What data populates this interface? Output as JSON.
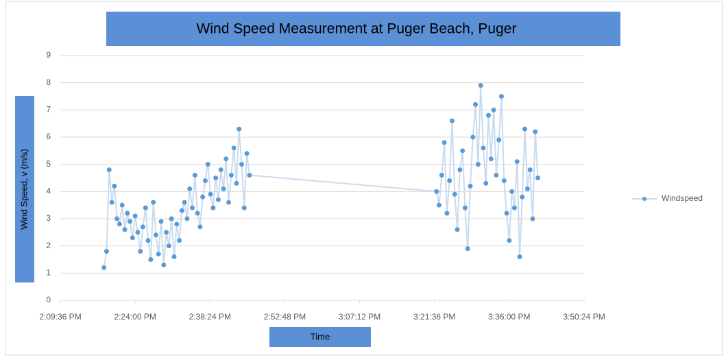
{
  "chart_data": {
    "type": "scatter",
    "title": "Wind  Speed Measurement at Puger Beach, Puger",
    "x_label": "Time",
    "y_label": "Wind Speed, v (m/s)",
    "xlim": [
      50976,
      57024
    ],
    "xticks": [
      {
        "value": 50976,
        "label": "2:09:36 PM"
      },
      {
        "value": 51840,
        "label": "2:24:00 PM"
      },
      {
        "value": 52704,
        "label": "2:38:24 PM"
      },
      {
        "value": 53568,
        "label": "2:52:48 PM"
      },
      {
        "value": 54432,
        "label": "3:07:12 PM"
      },
      {
        "value": 55296,
        "label": "3:21:36 PM"
      },
      {
        "value": 56160,
        "label": "3:36:00 PM"
      },
      {
        "value": 57024,
        "label": "3:50:24 PM"
      }
    ],
    "ylim": [
      0,
      9
    ],
    "yticks": [
      0,
      1,
      2,
      3,
      4,
      5,
      6,
      7,
      8,
      9
    ],
    "grid": true,
    "legend": "right",
    "series": [
      {
        "name": "Windspeed",
        "color": "#5b9bd5",
        "x": [
          51480,
          51510,
          51540,
          51570,
          51600,
          51630,
          51660,
          51690,
          51720,
          51750,
          51780,
          51810,
          51840,
          51870,
          51900,
          51930,
          51960,
          51990,
          52020,
          52050,
          52080,
          52110,
          52140,
          52170,
          52200,
          52230,
          52260,
          52290,
          52320,
          52350,
          52380,
          52410,
          52440,
          52470,
          52500,
          52530,
          52560,
          52590,
          52620,
          52650,
          52680,
          52710,
          52740,
          52770,
          52800,
          52830,
          52860,
          52890,
          52920,
          52950,
          52980,
          53010,
          53040,
          53070,
          53100,
          53130,
          53160,
          55320,
          55350,
          55380,
          55410,
          55440,
          55470,
          55500,
          55530,
          55560,
          55590,
          55620,
          55650,
          55680,
          55710,
          55740,
          55770,
          55800,
          55830,
          55860,
          55890,
          55920,
          55950,
          55980,
          56010,
          56040,
          56070,
          56100,
          56130,
          56160,
          56190,
          56220,
          56250,
          56280,
          56310,
          56340,
          56370,
          56400,
          56430,
          56460,
          56490
        ],
        "values": [
          1.2,
          1.8,
          4.8,
          3.6,
          4.2,
          3.0,
          2.8,
          3.5,
          2.6,
          3.2,
          2.9,
          2.3,
          3.1,
          2.5,
          1.8,
          2.7,
          3.4,
          2.2,
          1.5,
          3.6,
          2.4,
          1.7,
          2.9,
          1.3,
          2.5,
          2.0,
          3.0,
          1.6,
          2.8,
          2.2,
          3.3,
          3.6,
          3.0,
          4.1,
          3.4,
          4.6,
          3.2,
          2.7,
          3.8,
          4.4,
          5.0,
          3.9,
          3.4,
          4.5,
          3.7,
          4.8,
          4.1,
          5.2,
          3.6,
          4.6,
          5.6,
          4.3,
          6.3,
          5.0,
          3.4,
          5.4,
          4.6,
          4.0,
          3.5,
          4.6,
          5.8,
          3.2,
          4.4,
          6.6,
          3.9,
          2.6,
          4.8,
          5.5,
          3.4,
          1.9,
          4.2,
          6.0,
          7.2,
          5.0,
          7.9,
          5.6,
          4.3,
          6.8,
          5.2,
          7.0,
          4.6,
          5.9,
          7.5,
          4.4,
          3.2,
          2.2,
          4.0,
          3.4,
          5.1,
          1.6,
          3.8,
          6.3,
          4.1,
          4.8,
          3.0,
          6.2,
          4.5
        ]
      }
    ]
  }
}
